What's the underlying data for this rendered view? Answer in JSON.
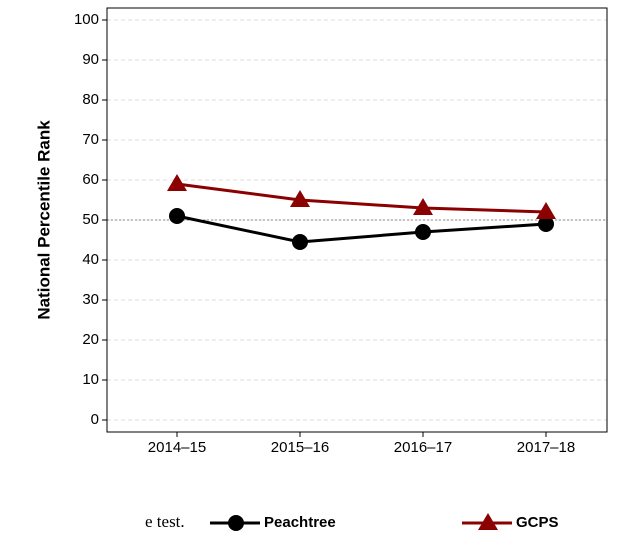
{
  "chart_data": {
    "type": "line",
    "y_label": "National Percentile Rank",
    "categories": [
      "2014–15",
      "2015–16",
      "2016–17",
      "2017–18"
    ],
    "series": [
      {
        "name": "Peachtree",
        "color": "#000000",
        "marker": "circle",
        "values": [
          51,
          44.5,
          47,
          49
        ]
      },
      {
        "name": "GCPS",
        "color": "#8b0000",
        "marker": "triangle",
        "values": [
          59,
          55,
          53,
          52
        ]
      }
    ],
    "ref_line": 50,
    "ylim": [
      -3,
      103
    ],
    "yticks": [
      0,
      10,
      20,
      30,
      40,
      50,
      60,
      70,
      80,
      90,
      100
    ],
    "grid": true,
    "annotation": "e test."
  }
}
